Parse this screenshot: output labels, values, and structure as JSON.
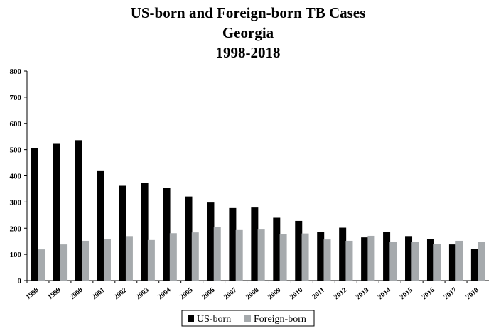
{
  "chart_data": {
    "type": "bar",
    "title_lines": [
      "US-born and Foreign-born TB Cases",
      "Georgia",
      "1998-2018"
    ],
    "categories": [
      "1998",
      "1999",
      "2000",
      "2001",
      "2002",
      "2003",
      "2004",
      "2005",
      "2006",
      "2007",
      "2008",
      "2009",
      "2010",
      "2011",
      "2012",
      "2013",
      "2014",
      "2015",
      "2016",
      "2017",
      "2018"
    ],
    "series": [
      {
        "name": "US-born",
        "color": "#000000",
        "values": [
          505,
          522,
          536,
          418,
          362,
          372,
          354,
          321,
          298,
          277,
          279,
          240,
          228,
          187,
          202,
          165,
          185,
          170,
          158,
          138,
          122
        ]
      },
      {
        "name": "Foreign-born",
        "color": "#a6aaad",
        "values": [
          119,
          138,
          152,
          158,
          170,
          155,
          181,
          184,
          206,
          193,
          195,
          177,
          180,
          157,
          152,
          171,
          149,
          149,
          140,
          152,
          149
        ]
      }
    ],
    "ylim": [
      0,
      800
    ],
    "yticks": [
      0,
      100,
      200,
      300,
      400,
      500,
      600,
      700,
      800
    ],
    "grid": false,
    "legend_position": "bottom-center"
  }
}
